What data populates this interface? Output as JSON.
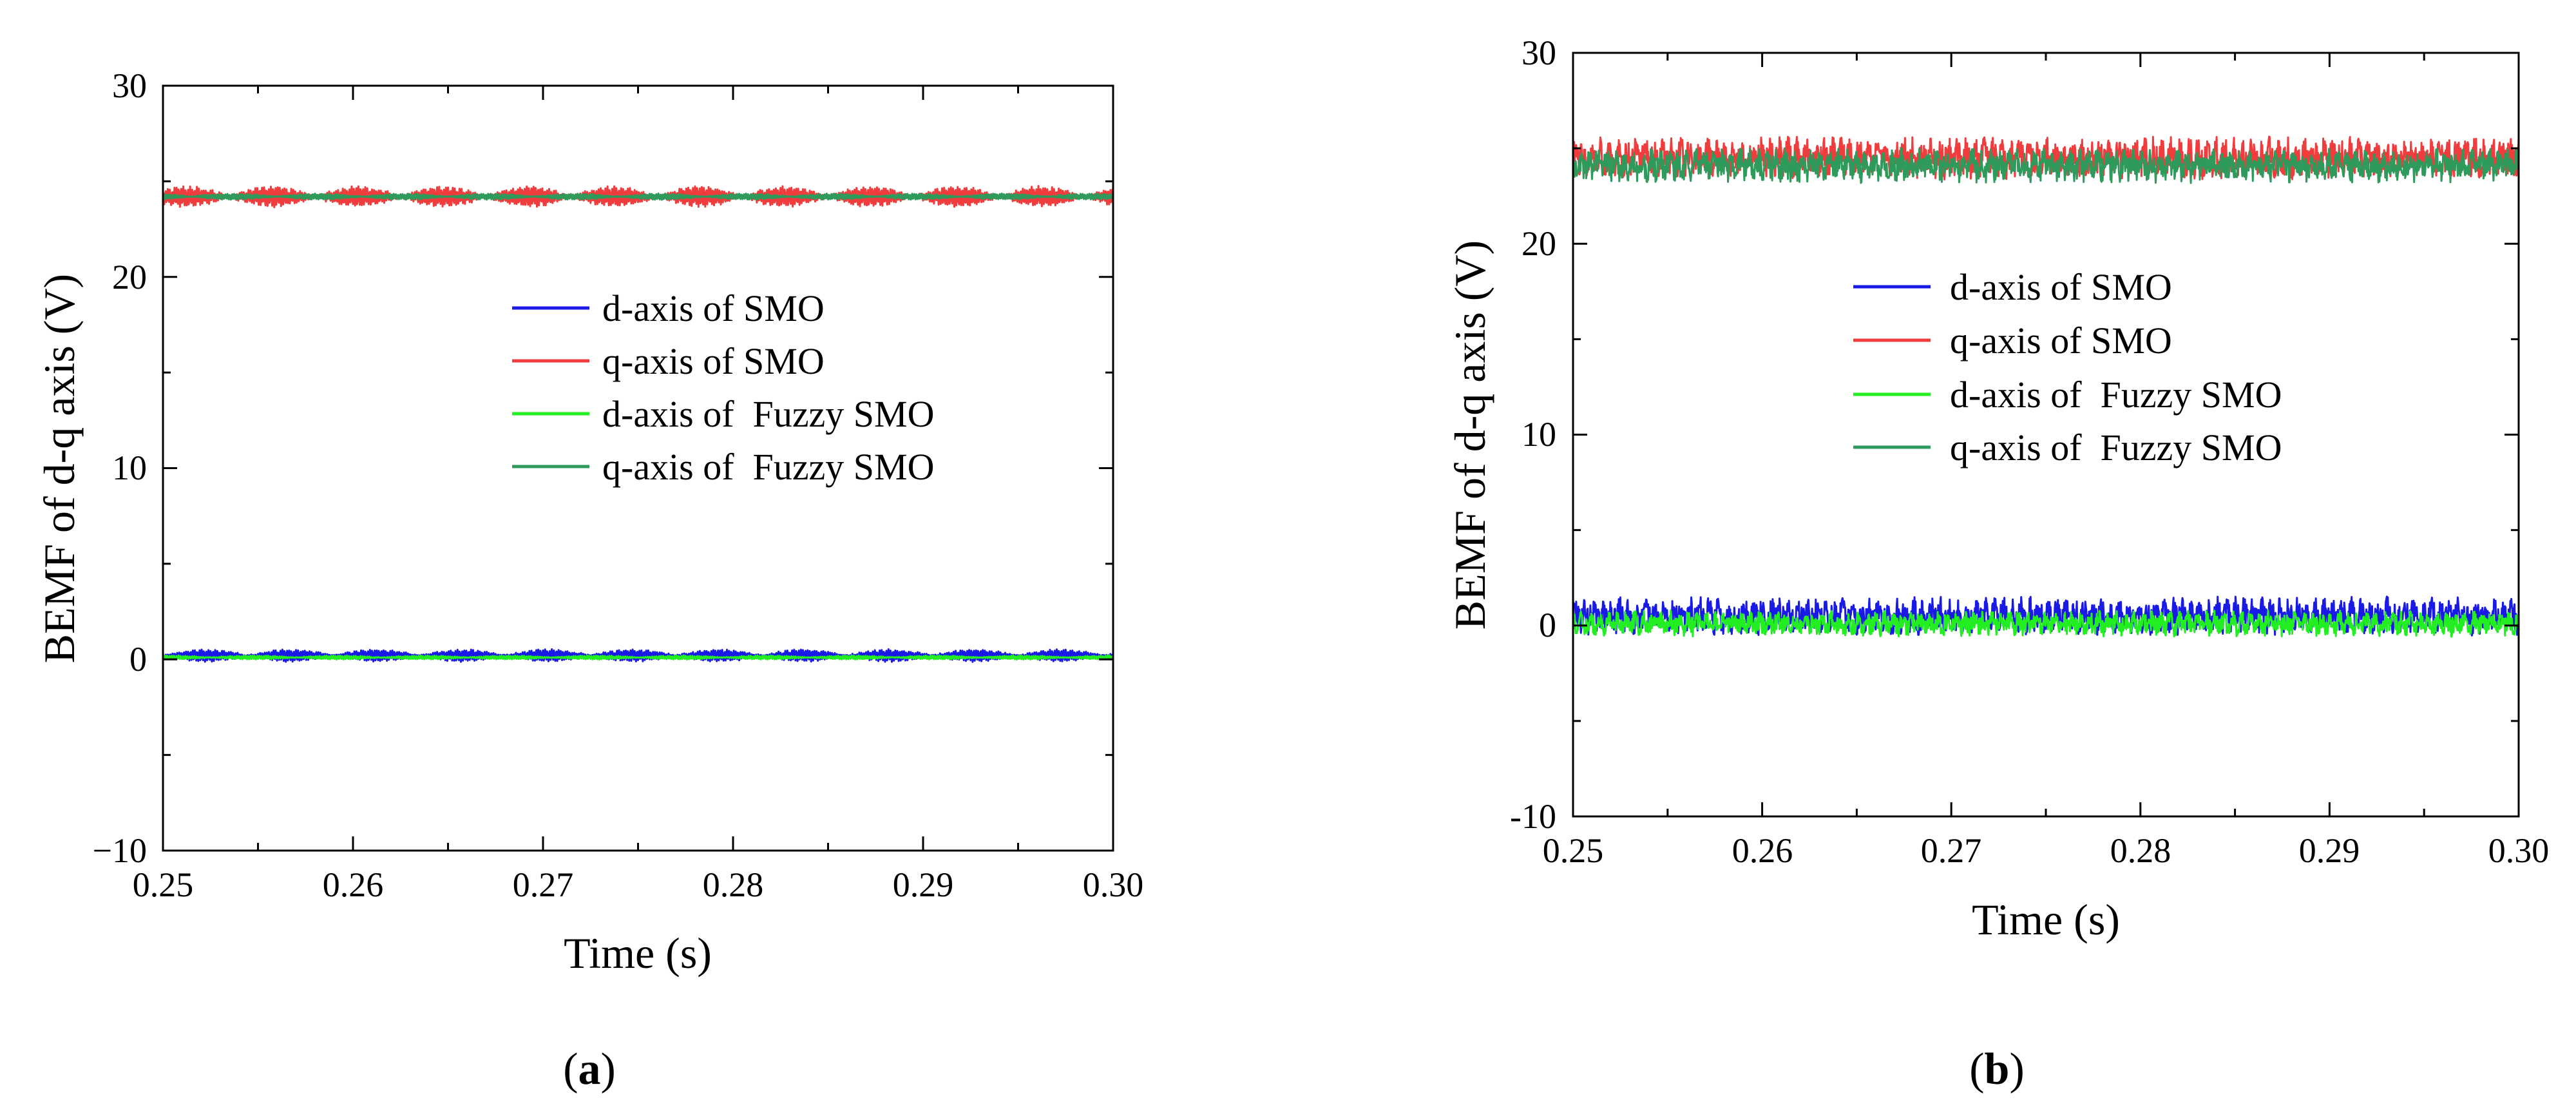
{
  "figure": {
    "panels": [
      {
        "label_open": "(",
        "label_letter": "a",
        "label_close": ")"
      },
      {
        "label_open": "(",
        "label_letter": "b",
        "label_close": ")"
      }
    ]
  },
  "colors": {
    "d_smo": "#1a1ae6",
    "q_smo": "#f03c3c",
    "d_fuzzy": "#22ee22",
    "q_fuzzy": "#2e9a5c"
  },
  "chart_data": [
    {
      "type": "line",
      "panel": "a",
      "title": "",
      "xlabel": "Time (s)",
      "ylabel": "BEMF of d-q axis (V)",
      "xlim": [
        0.25,
        0.3
      ],
      "ylim": [
        -10,
        30
      ],
      "xticks": [
        0.25,
        0.26,
        0.27,
        0.28,
        0.29,
        0.3
      ],
      "xtick_labels": [
        "0.25",
        "0.26",
        "0.27",
        "0.28",
        "0.29",
        "0.30"
      ],
      "yticks": [
        -10,
        0,
        10,
        20,
        30
      ],
      "ytick_labels": [
        "−10",
        "0",
        "10",
        "20",
        "30"
      ],
      "grid": false,
      "legend_position": "center-right",
      "series": [
        {
          "name": "d-axis of SMO",
          "color_key": "d_smo",
          "mean": 0.2,
          "noise": 0.3,
          "style": "beat"
        },
        {
          "name": "q-axis of SMO",
          "color_key": "q_smo",
          "mean": 24.2,
          "noise": 0.5,
          "style": "beat"
        },
        {
          "name": "d-axis of  Fuzzy SMO",
          "color_key": "d_fuzzy",
          "mean": 0.1,
          "noise": 0.1,
          "style": "beat"
        },
        {
          "name": "q-axis of  Fuzzy SMO",
          "color_key": "q_fuzzy",
          "mean": 24.2,
          "noise": 0.15,
          "style": "beat"
        }
      ]
    },
    {
      "type": "line",
      "panel": "b",
      "title": "",
      "xlabel": "Time (s)",
      "ylabel": "BEMF of d-q axis (V)",
      "xlim": [
        0.25,
        0.3
      ],
      "ylim": [
        -10,
        30
      ],
      "xticks": [
        0.25,
        0.26,
        0.27,
        0.28,
        0.29,
        0.3
      ],
      "xtick_labels": [
        "0.25",
        "0.26",
        "0.27",
        "0.28",
        "0.29",
        "0.30"
      ],
      "yticks": [
        -10,
        0,
        10,
        20,
        30
      ],
      "ytick_labels": [
        "-10",
        "0",
        "10",
        "20",
        "30"
      ],
      "grid": false,
      "legend_position": "center",
      "series": [
        {
          "name": "d-axis of SMO",
          "color_key": "d_smo",
          "mean": 0.5,
          "noise": 0.9,
          "style": "noise"
        },
        {
          "name": "q-axis of SMO",
          "color_key": "q_smo",
          "mean": 24.5,
          "noise": 1.0,
          "style": "noise"
        },
        {
          "name": "d-axis of  Fuzzy SMO",
          "color_key": "d_fuzzy",
          "mean": 0.1,
          "noise": 0.6,
          "style": "noise"
        },
        {
          "name": "q-axis of  Fuzzy SMO",
          "color_key": "q_fuzzy",
          "mean": 24.1,
          "noise": 0.8,
          "style": "noise"
        }
      ]
    }
  ]
}
